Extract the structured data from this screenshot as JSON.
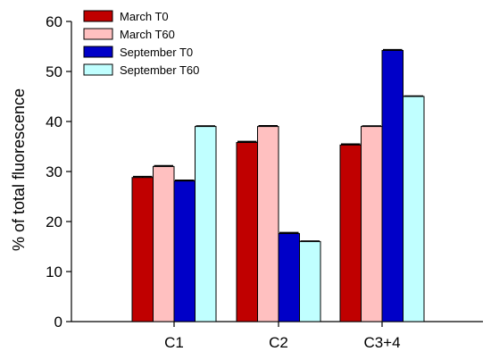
{
  "chart_data": {
    "type": "bar",
    "title": "",
    "xlabel": "",
    "ylabel": "% of total fluorescence",
    "categories": [
      "C1",
      "C2",
      "C3+4"
    ],
    "series": [
      {
        "name": "March T0",
        "values": [
          28.8,
          35.8,
          35.3
        ],
        "errors": [
          0.2,
          0.2,
          0.2
        ],
        "color": "#c00000"
      },
      {
        "name": "March T60",
        "values": [
          31.0,
          39.0,
          39.0
        ],
        "errors": [
          0.15,
          0.15,
          0.1
        ],
        "color": "#ffc0c0"
      },
      {
        "name": "September T0",
        "values": [
          28.1,
          17.6,
          54.2
        ],
        "errors": [
          0.15,
          0.2,
          0.15
        ],
        "color": "#0000c8"
      },
      {
        "name": "September T60",
        "values": [
          39.0,
          16.0,
          45.0
        ],
        "errors": [
          0.1,
          0.1,
          0.1
        ],
        "color": "#c0ffff"
      }
    ],
    "ylim": [
      0,
      60
    ],
    "yticks": [
      0,
      10,
      20,
      30,
      40,
      50,
      60
    ],
    "grid": false,
    "legend_position": "top-left",
    "error_bars": true
  }
}
